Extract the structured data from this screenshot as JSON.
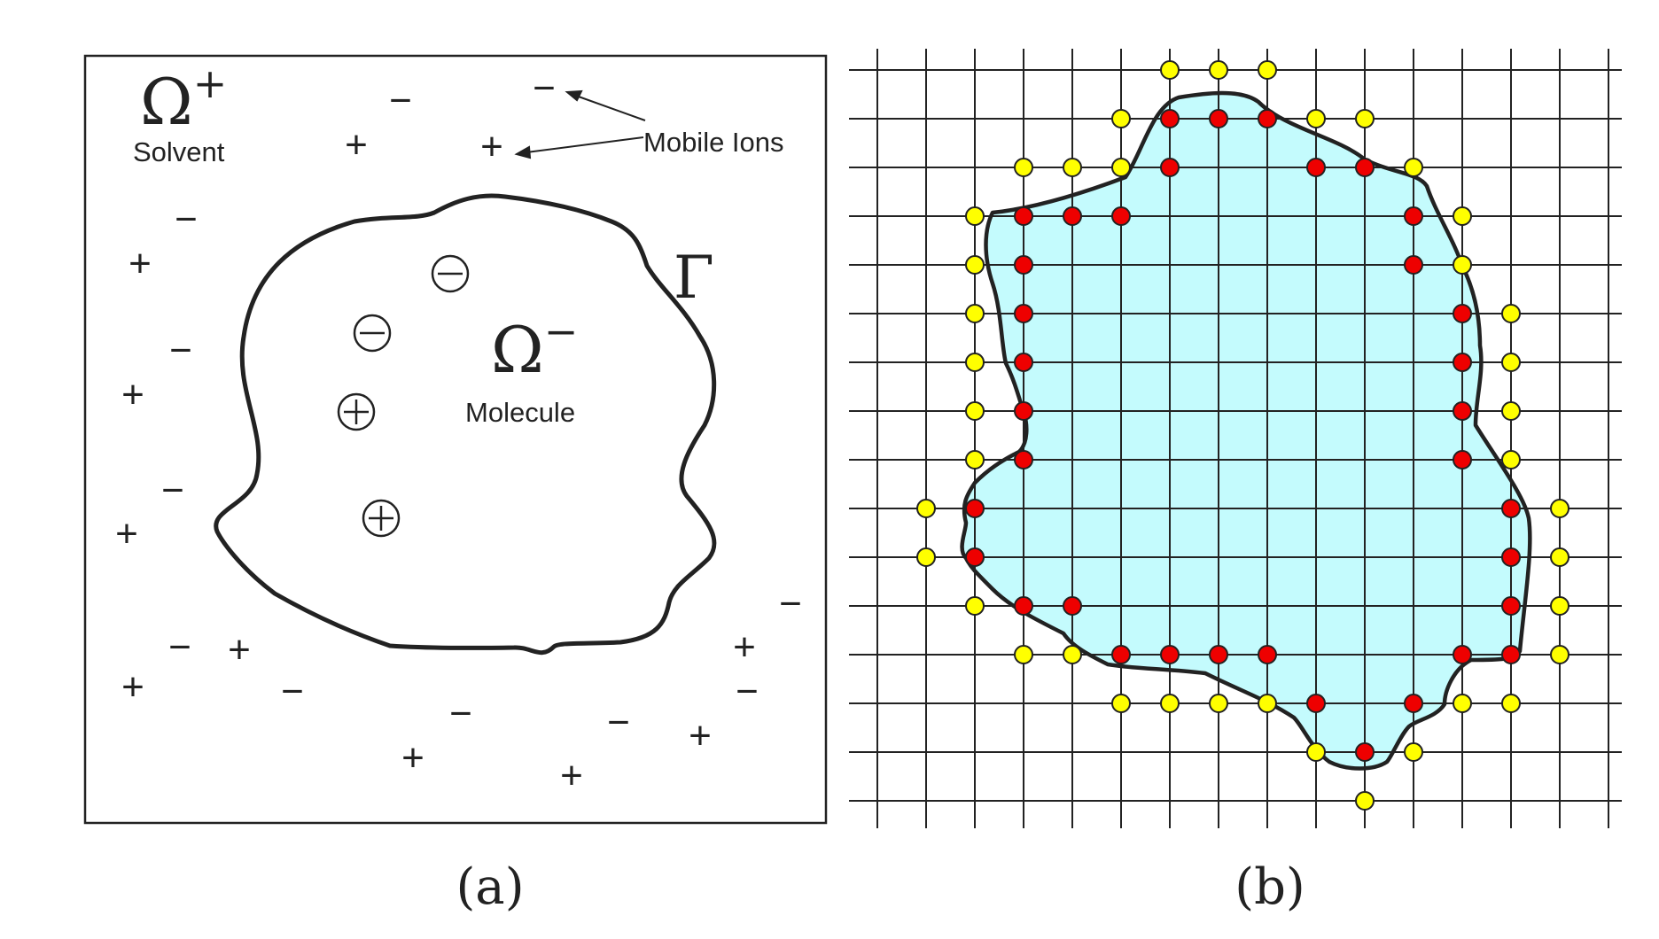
{
  "panel_a": {
    "solvent_symbol": "Ω",
    "solvent_sup": "+",
    "solvent_label": "Solvent",
    "molecule_symbol": "Ω",
    "molecule_sup": "−",
    "molecule_label": "Molecule",
    "boundary_symbol": "Γ",
    "mobile_ions_label": "Mobile Ions",
    "caption": "(a)",
    "mobile_ions": [
      "−",
      "−",
      "+",
      "+",
      "−",
      "+",
      "−",
      "+",
      "−",
      "+",
      "−",
      "+",
      "+",
      "−",
      "−",
      "−",
      "+",
      "+",
      "−",
      "+",
      "+",
      "−",
      "+",
      "−",
      "+",
      "−"
    ],
    "fixed_charges": [
      "⊖",
      "⊖",
      "⊕",
      "⊕"
    ]
  },
  "panel_b": {
    "caption": "(b)",
    "colors": {
      "interior_fill": "#c4fbfd",
      "irregular_point": "#ee0000",
      "outer_point": "#ffff00",
      "outline": "#222222",
      "grid": "#222222"
    }
  }
}
